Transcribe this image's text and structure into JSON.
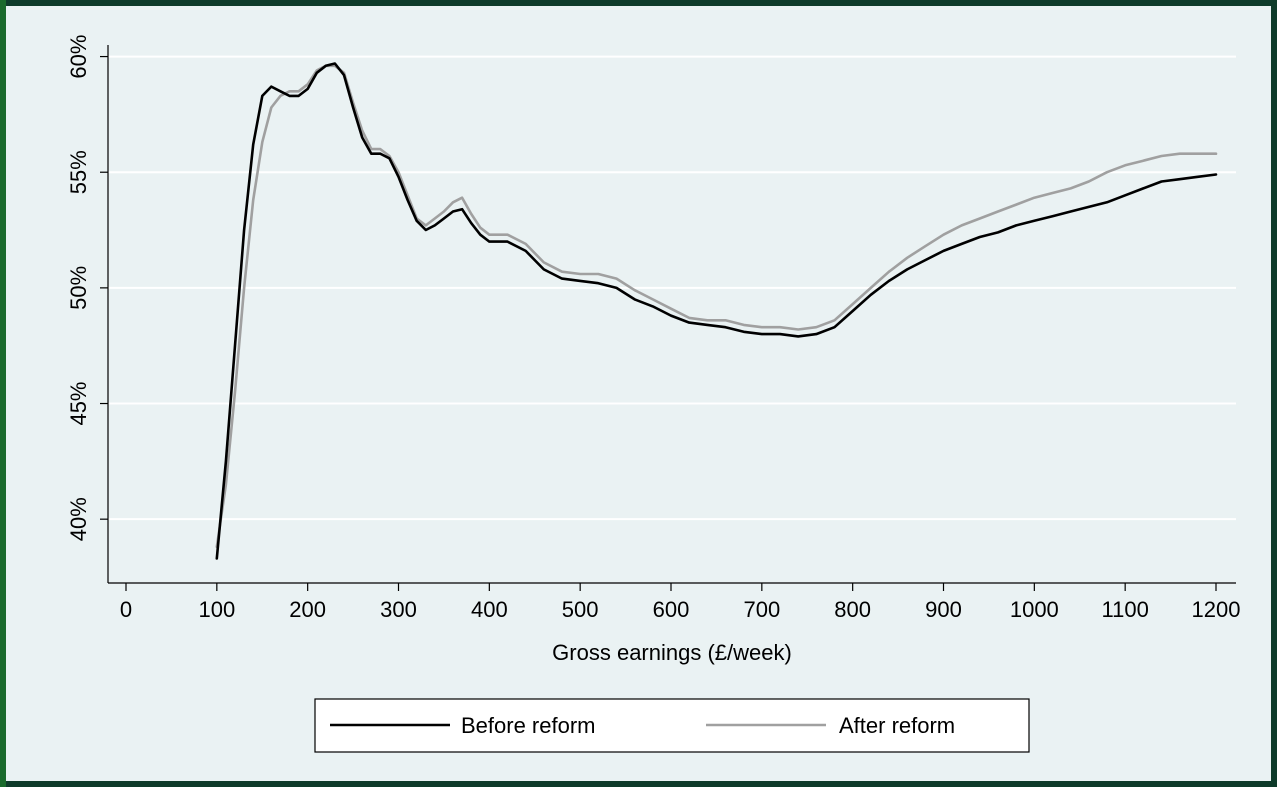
{
  "chart_data": {
    "type": "line",
    "title": "",
    "xlabel": "Gross earnings (£/week)",
    "ylabel": "",
    "xlim": [
      0,
      1200
    ],
    "ylim": [
      37.5,
      60.5
    ],
    "x_ticks": [
      0,
      100,
      200,
      300,
      400,
      500,
      600,
      700,
      800,
      900,
      1000,
      1100,
      1200
    ],
    "x_tick_labels": [
      "0",
      "100",
      "200",
      "300",
      "400",
      "500",
      "600",
      "700",
      "800",
      "900",
      "1000",
      "1100",
      "1200"
    ],
    "y_ticks": [
      40,
      45,
      50,
      55,
      60
    ],
    "y_tick_labels": [
      "40%",
      "45%",
      "50%",
      "55%",
      "60%"
    ],
    "grid": "horizontal",
    "legend_position": "bottom",
    "series": [
      {
        "name": "Before reform",
        "color": "#000000",
        "x": [
          100,
          110,
          120,
          130,
          140,
          150,
          160,
          170,
          180,
          190,
          200,
          210,
          220,
          230,
          240,
          250,
          260,
          270,
          280,
          290,
          300,
          310,
          320,
          330,
          340,
          350,
          360,
          370,
          380,
          390,
          400,
          420,
          440,
          460,
          480,
          500,
          520,
          540,
          560,
          580,
          600,
          620,
          640,
          660,
          680,
          700,
          720,
          740,
          760,
          780,
          800,
          820,
          840,
          860,
          880,
          900,
          920,
          940,
          960,
          980,
          1000,
          1020,
          1040,
          1060,
          1080,
          1100,
          1120,
          1140,
          1160,
          1180,
          1200
        ],
        "values": [
          38.3,
          42.5,
          47.5,
          52.5,
          56.2,
          58.3,
          58.7,
          58.5,
          58.3,
          58.3,
          58.6,
          59.3,
          59.6,
          59.7,
          59.2,
          57.8,
          56.5,
          55.8,
          55.8,
          55.6,
          54.8,
          53.8,
          52.9,
          52.5,
          52.7,
          53.0,
          53.3,
          53.4,
          52.8,
          52.3,
          52.0,
          52.0,
          51.6,
          50.8,
          50.4,
          50.3,
          50.2,
          50.0,
          49.5,
          49.2,
          48.8,
          48.5,
          48.4,
          48.3,
          48.1,
          48.0,
          48.0,
          47.9,
          48.0,
          48.3,
          49.0,
          49.7,
          50.3,
          50.8,
          51.2,
          51.6,
          51.9,
          52.2,
          52.4,
          52.7,
          52.9,
          53.1,
          53.3,
          53.5,
          53.7,
          54.0,
          54.3,
          54.6,
          54.7,
          54.8,
          54.9
        ]
      },
      {
        "name": "After reform",
        "color": "#a0a0a0",
        "x": [
          100,
          110,
          120,
          130,
          140,
          150,
          160,
          170,
          180,
          190,
          200,
          210,
          220,
          230,
          240,
          250,
          260,
          270,
          280,
          290,
          300,
          310,
          320,
          330,
          340,
          350,
          360,
          370,
          380,
          390,
          400,
          420,
          440,
          460,
          480,
          500,
          520,
          540,
          560,
          580,
          600,
          620,
          640,
          660,
          680,
          700,
          720,
          740,
          760,
          780,
          800,
          820,
          840,
          860,
          880,
          900,
          920,
          940,
          960,
          980,
          1000,
          1020,
          1040,
          1060,
          1080,
          1100,
          1120,
          1140,
          1160,
          1180,
          1200
        ],
        "values": [
          38.8,
          41.5,
          45.5,
          50.0,
          53.8,
          56.3,
          57.8,
          58.3,
          58.5,
          58.5,
          58.8,
          59.4,
          59.6,
          59.6,
          59.3,
          58.0,
          56.8,
          56.0,
          56.0,
          55.7,
          55.0,
          54.0,
          53.0,
          52.7,
          53.0,
          53.3,
          53.7,
          53.9,
          53.2,
          52.6,
          52.3,
          52.3,
          51.9,
          51.1,
          50.7,
          50.6,
          50.6,
          50.4,
          49.9,
          49.5,
          49.1,
          48.7,
          48.6,
          48.6,
          48.4,
          48.3,
          48.3,
          48.2,
          48.3,
          48.6,
          49.3,
          50.0,
          50.7,
          51.3,
          51.8,
          52.3,
          52.7,
          53.0,
          53.3,
          53.6,
          53.9,
          54.1,
          54.3,
          54.6,
          55.0,
          55.3,
          55.5,
          55.7,
          55.8,
          55.8,
          55.8
        ]
      }
    ]
  }
}
